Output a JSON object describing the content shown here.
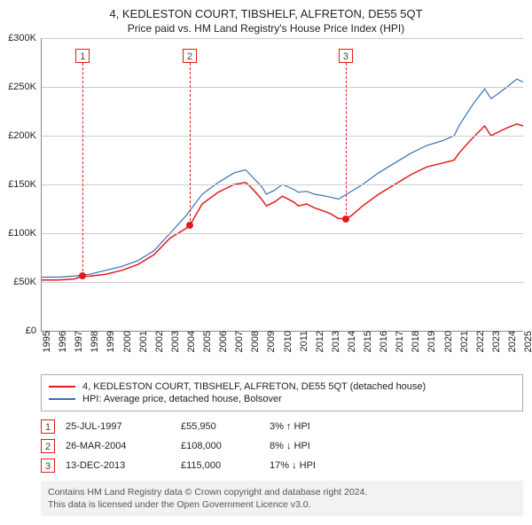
{
  "title_line1": "4, KEDLESTON COURT, TIBSHELF, ALFRETON, DE55 5QT",
  "title_line2": "Price paid vs. HM Land Registry's House Price Index (HPI)",
  "chart": {
    "type": "line",
    "background_color": "#ffffff",
    "grid_color": "#cccccc",
    "axis_color": "#888888",
    "text_color": "#222222",
    "x_min_year": 1995,
    "x_max_year": 2025,
    "x_tick_years": [
      1995,
      1996,
      1997,
      1998,
      1999,
      2000,
      2001,
      2002,
      2003,
      2004,
      2005,
      2006,
      2007,
      2008,
      2009,
      2010,
      2011,
      2012,
      2013,
      2014,
      2015,
      2016,
      2017,
      2018,
      2019,
      2020,
      2021,
      2022,
      2023,
      2024,
      2025
    ],
    "y_min": 0,
    "y_max": 300000,
    "y_tick_step": 50000,
    "y_tick_labels": [
      "£0",
      "£50K",
      "£100K",
      "£150K",
      "£200K",
      "£250K",
      "£300K"
    ],
    "series": [
      {
        "id": "price_paid",
        "label": "4, KEDLESTON COURT, TIBSHELF, ALFRETON, DE55 5QT (detached house)",
        "color": "#e31a1c",
        "line_width": 1.5,
        "points": [
          [
            1995.0,
            52000
          ],
          [
            1996.0,
            52000
          ],
          [
            1997.0,
            53000
          ],
          [
            1997.56,
            55950
          ],
          [
            1998.0,
            56000
          ],
          [
            1999.0,
            58000
          ],
          [
            2000.0,
            62000
          ],
          [
            2001.0,
            68000
          ],
          [
            2002.0,
            78000
          ],
          [
            2003.0,
            95000
          ],
          [
            2004.0,
            105000
          ],
          [
            2004.23,
            108000
          ],
          [
            2005.0,
            130000
          ],
          [
            2006.0,
            142000
          ],
          [
            2007.0,
            150000
          ],
          [
            2007.7,
            152000
          ],
          [
            2008.0,
            148000
          ],
          [
            2008.7,
            135000
          ],
          [
            2009.0,
            128000
          ],
          [
            2009.5,
            132000
          ],
          [
            2010.0,
            138000
          ],
          [
            2010.7,
            132000
          ],
          [
            2011.0,
            128000
          ],
          [
            2011.5,
            130000
          ],
          [
            2012.0,
            126000
          ],
          [
            2012.7,
            122000
          ],
          [
            2013.0,
            120000
          ],
          [
            2013.5,
            115000
          ],
          [
            2013.95,
            115000
          ],
          [
            2014.3,
            118000
          ],
          [
            2015.0,
            128000
          ],
          [
            2016.0,
            140000
          ],
          [
            2017.0,
            150000
          ],
          [
            2018.0,
            160000
          ],
          [
            2019.0,
            168000
          ],
          [
            2020.0,
            172000
          ],
          [
            2020.7,
            175000
          ],
          [
            2021.0,
            182000
          ],
          [
            2021.7,
            195000
          ],
          [
            2022.0,
            200000
          ],
          [
            2022.6,
            210000
          ],
          [
            2023.0,
            200000
          ],
          [
            2023.6,
            205000
          ],
          [
            2024.0,
            208000
          ],
          [
            2024.6,
            212000
          ],
          [
            2025.0,
            210000
          ]
        ]
      },
      {
        "id": "hpi",
        "label": "HPI: Average price, detached house, Bolsover",
        "color": "#3b6fb6",
        "line_width": 1.2,
        "points": [
          [
            1995.0,
            55000
          ],
          [
            1996.0,
            55000
          ],
          [
            1997.0,
            56000
          ],
          [
            1998.0,
            58000
          ],
          [
            1999.0,
            62000
          ],
          [
            2000.0,
            66000
          ],
          [
            2001.0,
            72000
          ],
          [
            2002.0,
            82000
          ],
          [
            2003.0,
            100000
          ],
          [
            2004.0,
            118000
          ],
          [
            2005.0,
            140000
          ],
          [
            2006.0,
            152000
          ],
          [
            2007.0,
            162000
          ],
          [
            2007.7,
            165000
          ],
          [
            2008.0,
            160000
          ],
          [
            2008.7,
            148000
          ],
          [
            2009.0,
            140000
          ],
          [
            2009.5,
            144000
          ],
          [
            2010.0,
            150000
          ],
          [
            2010.7,
            145000
          ],
          [
            2011.0,
            142000
          ],
          [
            2011.5,
            143000
          ],
          [
            2012.0,
            140000
          ],
          [
            2012.7,
            138000
          ],
          [
            2013.0,
            137000
          ],
          [
            2013.5,
            135000
          ],
          [
            2014.0,
            140000
          ],
          [
            2015.0,
            150000
          ],
          [
            2016.0,
            162000
          ],
          [
            2017.0,
            172000
          ],
          [
            2018.0,
            182000
          ],
          [
            2019.0,
            190000
          ],
          [
            2020.0,
            195000
          ],
          [
            2020.7,
            200000
          ],
          [
            2021.0,
            210000
          ],
          [
            2021.7,
            228000
          ],
          [
            2022.0,
            235000
          ],
          [
            2022.6,
            248000
          ],
          [
            2023.0,
            238000
          ],
          [
            2023.6,
            245000
          ],
          [
            2024.0,
            250000
          ],
          [
            2024.6,
            258000
          ],
          [
            2025.0,
            255000
          ]
        ]
      }
    ],
    "markers": [
      {
        "n": "1",
        "year": 1997.56,
        "value": 55950,
        "color": "#e31a1c"
      },
      {
        "n": "2",
        "year": 2004.23,
        "value": 108000,
        "color": "#e31a1c"
      },
      {
        "n": "3",
        "year": 2013.95,
        "value": 115000,
        "color": "#e31a1c"
      }
    ]
  },
  "legend": {
    "rows": [
      {
        "color": "#e31a1c",
        "label": "4, KEDLESTON COURT, TIBSHELF, ALFRETON, DE55 5QT (detached house)"
      },
      {
        "color": "#3b6fb6",
        "label": "HPI: Average price, detached house, Bolsover"
      }
    ]
  },
  "sales": [
    {
      "n": "1",
      "date": "25-JUL-1997",
      "price": "£55,950",
      "delta": "3% ↑ HPI",
      "color": "#e31a1c"
    },
    {
      "n": "2",
      "date": "26-MAR-2004",
      "price": "£108,000",
      "delta": "8% ↓ HPI",
      "color": "#e31a1c"
    },
    {
      "n": "3",
      "date": "13-DEC-2013",
      "price": "£115,000",
      "delta": "17% ↓ HPI",
      "color": "#e31a1c"
    }
  ],
  "footer": {
    "line1": "Contains HM Land Registry data © Crown copyright and database right 2024.",
    "line2": "This data is licensed under the Open Government Licence v3.0."
  }
}
